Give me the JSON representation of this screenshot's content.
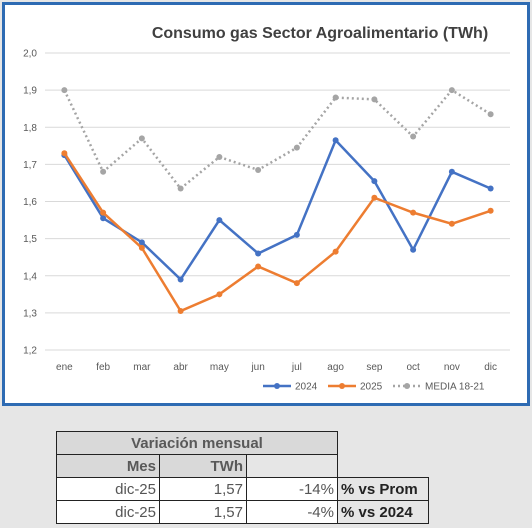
{
  "chart_data": {
    "type": "line",
    "title": "Consumo gas Sector Agroalimentario (TWh)",
    "categories": [
      "ene",
      "feb",
      "mar",
      "abr",
      "may",
      "jun",
      "jul",
      "ago",
      "sep",
      "oct",
      "nov",
      "dic"
    ],
    "ylim": [
      1.2,
      2.0
    ],
    "yticks": [
      "1,2",
      "1,3",
      "1,4",
      "1,5",
      "1,6",
      "1,7",
      "1,8",
      "1,9",
      "2,0"
    ],
    "grid": true,
    "legend_position": "bottom-right",
    "series": [
      {
        "name": "2024",
        "color": "#4472c4",
        "style": "solid",
        "values": [
          1.725,
          1.555,
          1.49,
          1.39,
          1.55,
          1.46,
          1.51,
          1.765,
          1.655,
          1.47,
          1.68,
          1.635
        ]
      },
      {
        "name": "2025",
        "color": "#ed7d31",
        "style": "solid",
        "values": [
          1.73,
          1.57,
          1.475,
          1.305,
          1.35,
          1.425,
          1.38,
          1.465,
          1.61,
          1.57,
          1.54,
          1.575
        ]
      },
      {
        "name": "MEDIA 18-21",
        "color": "#a5a5a5",
        "style": "dotted",
        "values": [
          1.9,
          1.68,
          1.77,
          1.635,
          1.72,
          1.685,
          1.745,
          1.88,
          1.875,
          1.775,
          1.9,
          1.835
        ]
      }
    ]
  },
  "table": {
    "title": "Variación mensual",
    "col_mes": "Mes",
    "col_twh": "TWh",
    "rows": [
      {
        "mes": "dic-25",
        "twh": "1,57",
        "pct": "-14%",
        "label": "% vs Prom"
      },
      {
        "mes": "dic-25",
        "twh": "1,57",
        "pct": "-4%",
        "label": "% vs 2024"
      }
    ]
  }
}
